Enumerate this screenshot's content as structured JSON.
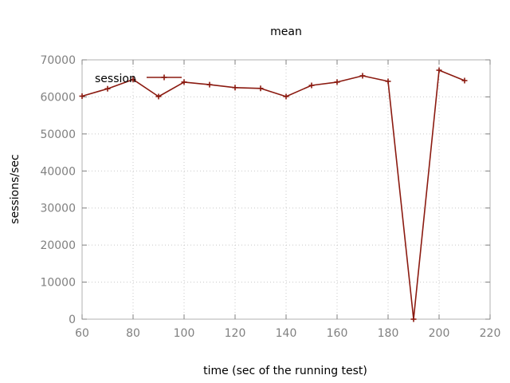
{
  "chart_data": {
    "type": "line",
    "title": "mean",
    "xlabel": "time (sec of the running test)",
    "ylabel": "sessions/sec",
    "xlim": [
      60,
      220
    ],
    "ylim": [
      0,
      70000
    ],
    "xticks": [
      60,
      80,
      100,
      120,
      140,
      160,
      180,
      200,
      220
    ],
    "yticks": [
      0,
      10000,
      20000,
      30000,
      40000,
      50000,
      60000,
      70000
    ],
    "grid": true,
    "legend_position": "top-left",
    "series": [
      {
        "name": "session",
        "color": "#8b1a10",
        "x": [
          60,
          70,
          80,
          90,
          100,
          110,
          120,
          130,
          140,
          150,
          160,
          170,
          180,
          190,
          200,
          210
        ],
        "y": [
          60200,
          62200,
          64700,
          60100,
          64000,
          63300,
          62500,
          62300,
          60100,
          63100,
          64000,
          65700,
          64200,
          0,
          67200,
          64400
        ]
      }
    ]
  }
}
